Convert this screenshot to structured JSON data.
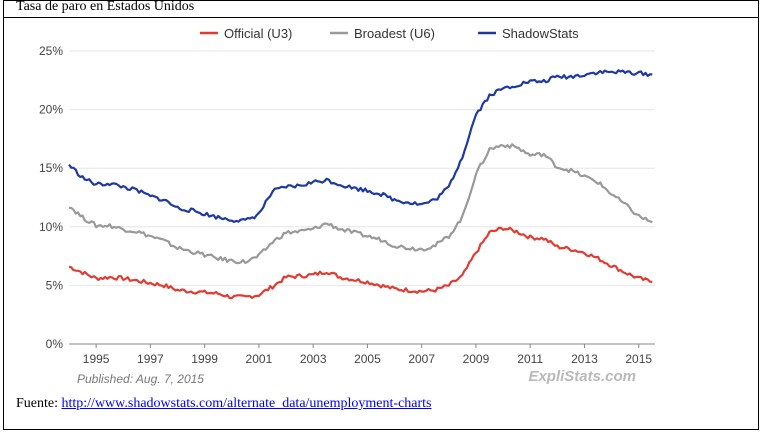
{
  "doc": {
    "title": "Tasa de paro en Estados Unidos",
    "source_label": "Fuente:",
    "source_link": "http://www.shadowstats.com/alternate_data/unemployment-charts"
  },
  "chart_data": {
    "type": "line",
    "title": "",
    "xlabel": "",
    "ylabel": "",
    "xlim": [
      1994,
      2015.6
    ],
    "ylim": [
      0,
      25
    ],
    "yticks": [
      "0%",
      "5%",
      "10%",
      "15%",
      "20%",
      "25%"
    ],
    "xticks": [
      "1995",
      "1997",
      "1999",
      "2001",
      "2003",
      "2005",
      "2007",
      "2009",
      "2011",
      "2013",
      "2015"
    ],
    "grid": true,
    "legend_position": "top",
    "published": "Published: Aug. 7, 2015",
    "brand": "ExpliStats.com",
    "series": [
      {
        "name": "Official (U3)",
        "color": "#e03c31",
        "x": [
          1994.0,
          1994.5,
          1995.0,
          1995.5,
          1996.0,
          1996.5,
          1997.0,
          1997.5,
          1998.0,
          1998.5,
          1999.0,
          1999.5,
          2000.0,
          2000.5,
          2001.0,
          2001.5,
          2002.0,
          2002.5,
          2003.0,
          2003.5,
          2004.0,
          2004.5,
          2005.0,
          2005.5,
          2006.0,
          2006.5,
          2007.0,
          2007.5,
          2008.0,
          2008.5,
          2009.0,
          2009.5,
          2010.0,
          2010.5,
          2011.0,
          2011.5,
          2012.0,
          2012.5,
          2013.0,
          2013.5,
          2014.0,
          2014.5,
          2015.0,
          2015.5
        ],
        "y": [
          6.6,
          6.1,
          5.6,
          5.7,
          5.6,
          5.4,
          5.2,
          5.0,
          4.6,
          4.5,
          4.4,
          4.3,
          4.0,
          4.0,
          4.2,
          4.9,
          5.7,
          5.8,
          5.9,
          6.2,
          5.7,
          5.5,
          5.3,
          5.0,
          4.7,
          4.6,
          4.5,
          4.6,
          5.0,
          5.8,
          7.8,
          9.5,
          9.9,
          9.6,
          9.1,
          9.0,
          8.3,
          8.1,
          7.8,
          7.3,
          6.7,
          6.1,
          5.6,
          5.3
        ]
      },
      {
        "name": "Broadest (U6)",
        "color": "#999999",
        "x": [
          1994.0,
          1994.5,
          1995.0,
          1995.5,
          1996.0,
          1996.5,
          1997.0,
          1997.5,
          1998.0,
          1998.5,
          1999.0,
          1999.5,
          2000.0,
          2000.5,
          2001.0,
          2001.5,
          2002.0,
          2002.5,
          2003.0,
          2003.5,
          2004.0,
          2004.5,
          2005.0,
          2005.5,
          2006.0,
          2006.5,
          2007.0,
          2007.5,
          2008.0,
          2008.5,
          2009.0,
          2009.5,
          2010.0,
          2010.5,
          2011.0,
          2011.5,
          2012.0,
          2012.5,
          2013.0,
          2013.5,
          2014.0,
          2014.5,
          2015.0,
          2015.5
        ],
        "y": [
          11.8,
          10.8,
          10.1,
          10.1,
          9.8,
          9.6,
          9.2,
          8.8,
          8.2,
          7.9,
          7.6,
          7.3,
          7.1,
          7.0,
          7.5,
          8.7,
          9.5,
          9.6,
          9.8,
          10.3,
          9.8,
          9.5,
          9.2,
          8.9,
          8.4,
          8.2,
          8.1,
          8.4,
          9.2,
          10.8,
          14.5,
          16.6,
          17.0,
          16.8,
          16.1,
          16.2,
          15.1,
          14.8,
          14.3,
          13.8,
          12.8,
          11.9,
          10.9,
          10.4
        ]
      },
      {
        "name": "ShadowStats",
        "color": "#1f3a9e",
        "x": [
          1994.0,
          1994.5,
          1995.0,
          1995.5,
          1996.0,
          1996.5,
          1997.0,
          1997.5,
          1998.0,
          1998.5,
          1999.0,
          1999.5,
          2000.0,
          2000.5,
          2001.0,
          2001.5,
          2002.0,
          2002.5,
          2003.0,
          2003.5,
          2004.0,
          2004.5,
          2005.0,
          2005.5,
          2006.0,
          2006.5,
          2007.0,
          2007.5,
          2008.0,
          2008.5,
          2009.0,
          2009.5,
          2010.0,
          2010.5,
          2011.0,
          2011.5,
          2012.0,
          2012.5,
          2013.0,
          2013.5,
          2014.0,
          2014.5,
          2015.0,
          2015.5
        ],
        "y": [
          15.3,
          14.2,
          13.6,
          13.7,
          13.4,
          13.1,
          12.6,
          12.3,
          11.6,
          11.4,
          11.1,
          10.8,
          10.6,
          10.5,
          11.1,
          13.0,
          13.4,
          13.5,
          13.8,
          14.0,
          13.6,
          13.3,
          13.1,
          12.8,
          12.3,
          12.1,
          11.9,
          12.3,
          13.4,
          16.0,
          19.6,
          21.2,
          21.8,
          22.1,
          22.4,
          22.4,
          22.8,
          22.8,
          23.0,
          23.2,
          23.2,
          23.2,
          23.1,
          23.0
        ]
      }
    ]
  }
}
